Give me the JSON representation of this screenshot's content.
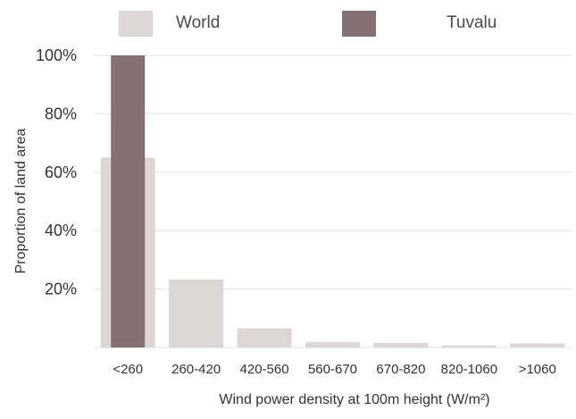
{
  "chart_data": {
    "type": "bar",
    "categories": [
      "<260",
      "260-420",
      "420-560",
      "560-670",
      "670-820",
      "820-1060",
      ">1060"
    ],
    "series": [
      {
        "name": "World",
        "color": "#dcd6d6",
        "values": [
          65,
          23.3,
          6.6,
          1.9,
          1.6,
          0.7,
          1.4
        ]
      },
      {
        "name": "Tuvalu",
        "color": "#857074",
        "values": [
          100,
          0,
          0,
          0,
          0,
          0,
          0
        ]
      }
    ],
    "yticks": [
      "20%",
      "40%",
      "60%",
      "80%",
      "100%"
    ],
    "ytick_values": [
      20,
      40,
      60,
      80,
      100
    ],
    "ylim": [
      0,
      100
    ],
    "xlabel": "Wind power density at 100m height (W/m²)",
    "ylabel": "Proportion of land area",
    "legend_position": "top",
    "grid": true
  }
}
